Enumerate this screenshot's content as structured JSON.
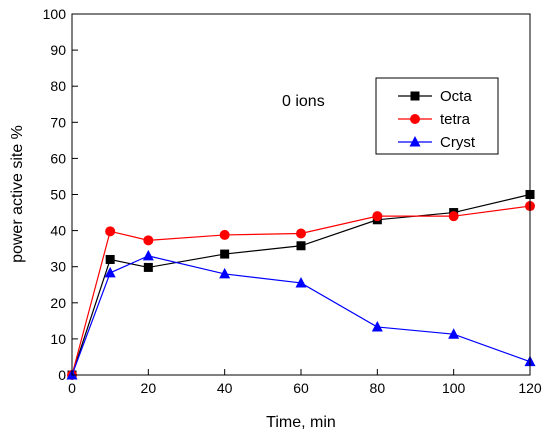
{
  "chart_data": {
    "type": "line",
    "title": "",
    "xlabel": "Time, min",
    "ylabel": "power active site %",
    "xlim": [
      0,
      120
    ],
    "ylim": [
      0,
      100
    ],
    "xticks": [
      0,
      20,
      40,
      60,
      80,
      100,
      120
    ],
    "yticks": [
      0,
      10,
      20,
      30,
      40,
      50,
      60,
      70,
      80,
      90,
      100
    ],
    "grid": false,
    "legend_position": "top-right",
    "annotation": "0 ions",
    "x": [
      0,
      10,
      20,
      40,
      60,
      80,
      100,
      120
    ],
    "series": [
      {
        "name": "Octa",
        "color": "#000000",
        "marker": "square",
        "values": [
          0,
          32,
          29.8,
          33.5,
          35.8,
          43,
          45,
          50
        ]
      },
      {
        "name": "tetra",
        "color": "#ff0000",
        "marker": "circle",
        "values": [
          0,
          39.8,
          37.3,
          38.8,
          39.2,
          44,
          44,
          46.8
        ]
      },
      {
        "name": "Cryst",
        "color": "#0000ff",
        "marker": "triangle",
        "values": [
          0,
          28.3,
          33,
          28,
          25.5,
          13.3,
          11.3,
          3.7
        ]
      }
    ]
  }
}
